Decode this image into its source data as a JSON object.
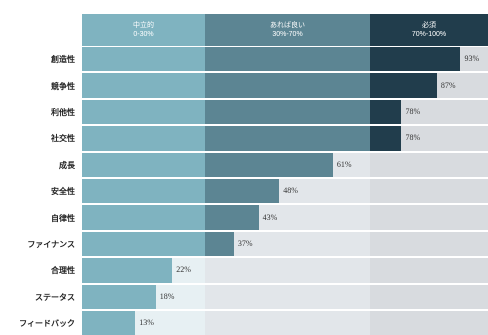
{
  "zones": [
    {
      "name": "中立的",
      "range": "0-30%",
      "color": "#7fb3c0",
      "bg": "#e7f0f3"
    },
    {
      "name": "あれば良い",
      "range": "30%-70%",
      "color": "#5c8593",
      "bg": "#e2e6ea"
    },
    {
      "name": "必須",
      "range": "70%-100%",
      "color": "#213d4c",
      "bg": "#d8dbdf"
    }
  ],
  "chart_data": {
    "type": "bar",
    "orientation": "horizontal",
    "categories": [
      "創造性",
      "競争性",
      "利他性",
      "社交性",
      "成長",
      "安全性",
      "自律性",
      "ファイナンス",
      "合理性",
      "ステータス",
      "フィードバック"
    ],
    "values": [
      93,
      87,
      78,
      78,
      61,
      48,
      43,
      37,
      22,
      18,
      13
    ],
    "value_suffix": "%",
    "xlim": [
      0,
      100
    ],
    "thresholds": [
      30,
      70
    ]
  }
}
